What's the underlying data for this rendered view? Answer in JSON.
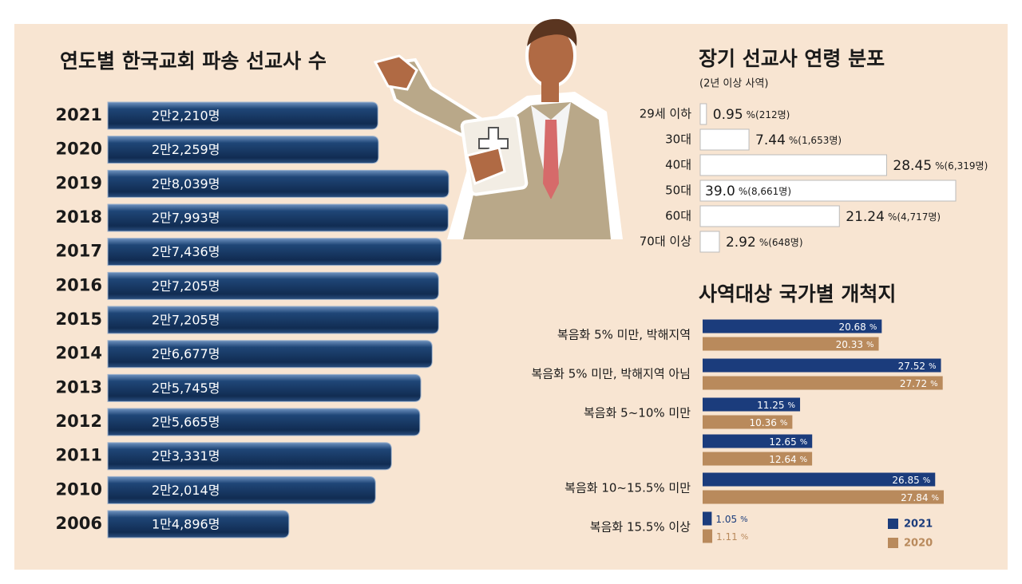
{
  "chart_data": [
    {
      "type": "bar",
      "orientation": "horizontal",
      "title": "연도별 한국교회 파송 선교사 수",
      "categories": [
        "2021",
        "2020",
        "2019",
        "2018",
        "2017",
        "2016",
        "2015",
        "2014",
        "2013",
        "2012",
        "2011",
        "2010",
        "2006"
      ],
      "values": [
        22210,
        22259,
        28039,
        27993,
        27436,
        27205,
        27205,
        26677,
        25745,
        25665,
        23331,
        22014,
        14896
      ],
      "value_labels": [
        "2만2,210명",
        "2만2,259명",
        "2만8,039명",
        "2만7,993명",
        "2만7,436명",
        "2만7,205명",
        "2만7,205명",
        "2만6,677명",
        "2만5,745명",
        "2만5,665명",
        "2만3,331명",
        "2만2,014명",
        "1만4,896명"
      ],
      "color": "#173763"
    },
    {
      "type": "bar",
      "orientation": "horizontal",
      "title": "장기 선교사 연령 분포",
      "subtitle": "(2년 이상 사역)",
      "categories": [
        "29세 이하",
        "30대",
        "40대",
        "50대",
        "60대",
        "70대 이상"
      ],
      "values": [
        0.95,
        7.44,
        28.45,
        39.0,
        21.24,
        2.92
      ],
      "value_labels": [
        "0.95",
        "7.44",
        "28.45",
        "39.0",
        "21.24",
        "2.92"
      ],
      "unit": "%",
      "counts": [
        212,
        1653,
        6319,
        8661,
        4717,
        648
      ],
      "count_labels": [
        "(212명)",
        "(1,653명)",
        "(6,319명)",
        "(8,661명)",
        "(4,717명)",
        "(648명)"
      ],
      "color": "#ffffff"
    },
    {
      "type": "grouped-bar",
      "orientation": "horizontal",
      "title": "사역대상 국가별 개척지",
      "categories": [
        "복음화  5% 미만, 박해지역",
        "복음화 5% 미만, 박해지역 아님",
        "복음화 5~10% 미만",
        null,
        "복음화 10~15.5% 미만",
        "복음화 15.5% 이상"
      ],
      "unit": "%",
      "series": [
        {
          "name": "2021",
          "color": "#1b3c7c",
          "values": [
            20.68,
            27.52,
            11.25,
            12.65,
            26.85,
            1.05
          ]
        },
        {
          "name": "2020",
          "color": "#b98a5c",
          "values": [
            20.33,
            27.72,
            10.36,
            12.64,
            27.84,
            1.11
          ]
        }
      ],
      "legend": "bottom-right"
    }
  ]
}
